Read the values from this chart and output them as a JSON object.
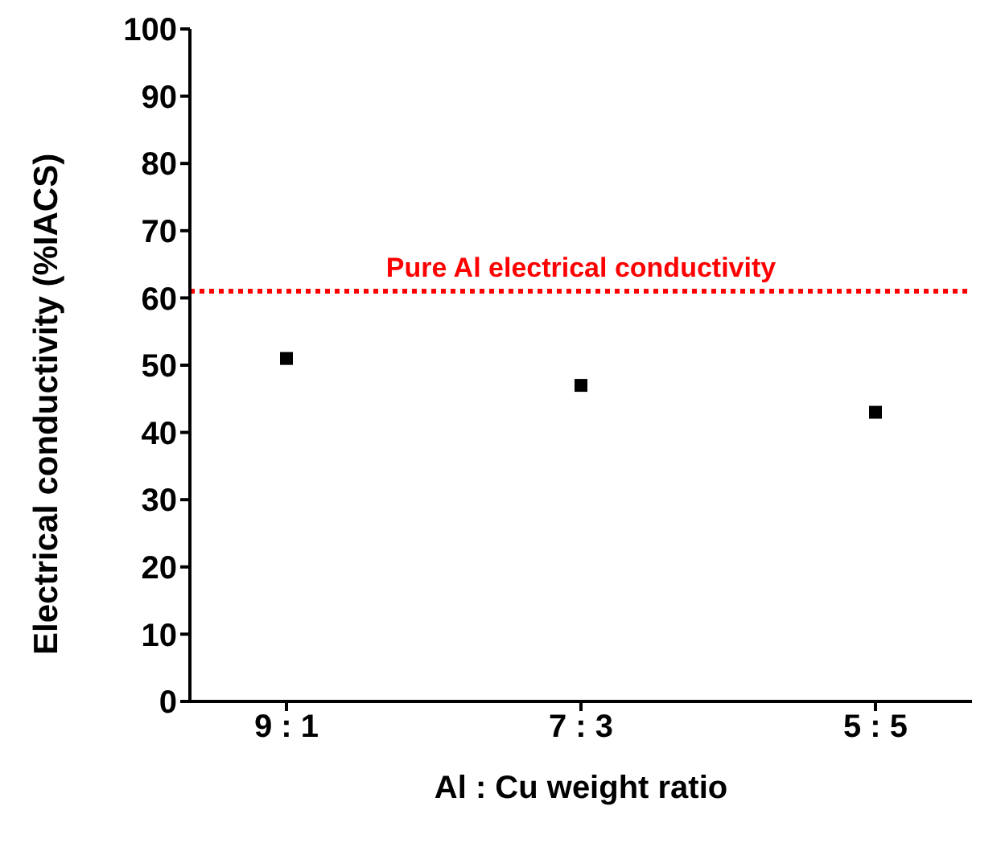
{
  "chart_data": {
    "type": "scatter",
    "xlabel": "Al : Cu weight ratio",
    "ylabel": "Electrical conductivity (%IACS)",
    "categories": [
      "9 : 1",
      "7 : 3",
      "5 : 5"
    ],
    "series": [
      {
        "color": "#000000",
        "values": [
          51,
          47,
          43
        ]
      }
    ],
    "marker": "square",
    "ylim": [
      0,
      100
    ],
    "yticks": [
      0,
      10,
      20,
      30,
      40,
      50,
      60,
      70,
      80,
      90,
      100
    ],
    "grid": false,
    "legend": false,
    "ref_lines": [
      {
        "axis": "y",
        "value": 61,
        "label": "Pure Al electrical conductivity",
        "color": "#ff0000",
        "line_style": "dotted"
      }
    ]
  }
}
